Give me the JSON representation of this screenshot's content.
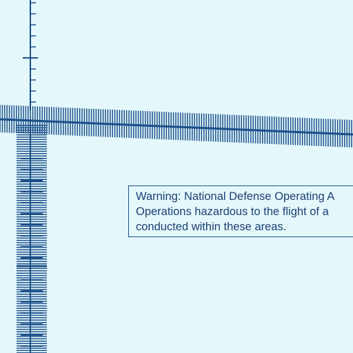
{
  "chart": {
    "background": "#e4f8fb",
    "line_color": "#1b4f8a",
    "text_color": "#1d3f73"
  },
  "warning": {
    "lines": [
      "Warning: National Defense Operating A",
      "Operations hazardous to the flight of a",
      "conducted within these areas."
    ]
  }
}
